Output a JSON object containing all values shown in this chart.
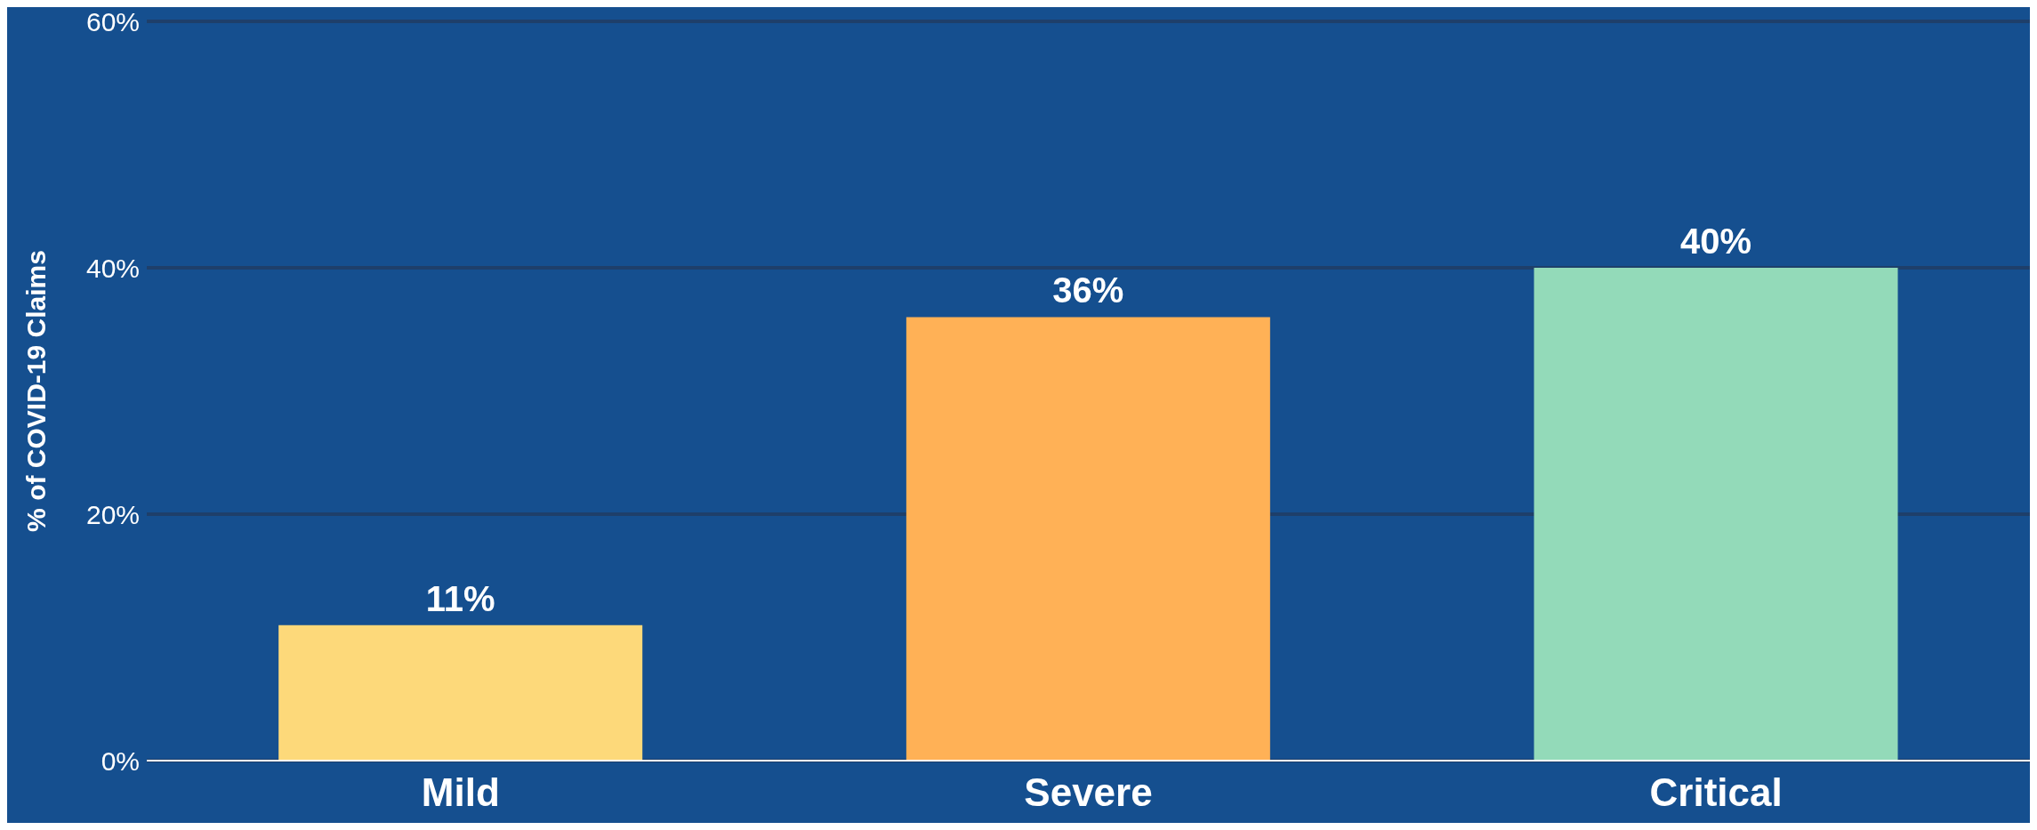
{
  "chart_data": {
    "type": "bar",
    "ylabel": "% of COVID-19 Claims",
    "categories": [
      "Mild",
      "Severe",
      "Critical"
    ],
    "values": [
      11,
      36,
      40
    ],
    "colors": [
      "#fdd97a",
      "#ffb156",
      "#93dab9"
    ],
    "value_labels": [
      "11%",
      "36%",
      "40%"
    ],
    "ylim": [
      0,
      60
    ],
    "yticks": [
      {
        "value": 0,
        "label": "0%"
      },
      {
        "value": 20,
        "label": "20%"
      },
      {
        "value": 40,
        "label": "40%"
      },
      {
        "value": 60,
        "label": "60%"
      }
    ],
    "grid": "y"
  }
}
